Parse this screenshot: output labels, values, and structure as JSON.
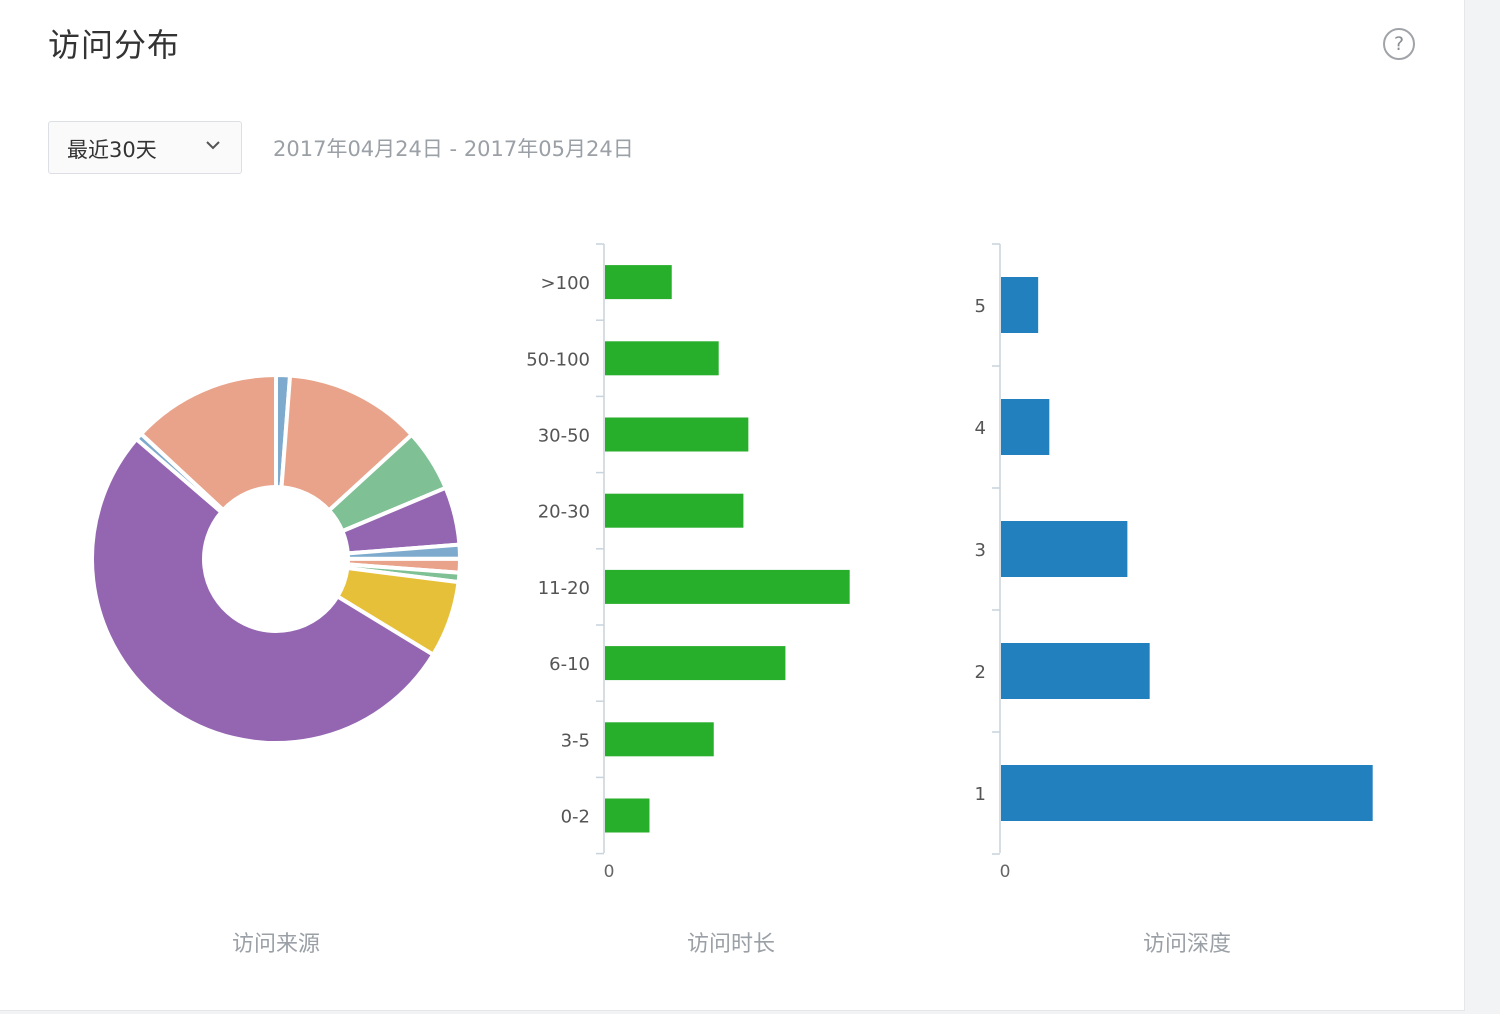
{
  "header": {
    "title": "访问分布",
    "help_icon": "?"
  },
  "filter": {
    "range_select": "最近30天",
    "date_range": "2017年04月24日 - 2017年05月24日"
  },
  "captions": {
    "source": "访问来源",
    "duration": "访问时长",
    "depth": "访问深度"
  },
  "chart_data": [
    {
      "type": "pie",
      "title": "访问来源",
      "donut": true,
      "slices": [
        {
          "value": 1.2,
          "color": "#7eabcd"
        },
        {
          "value": 11.8,
          "color": "#e8a38a"
        },
        {
          "value": 5.4,
          "color": "#7fc095"
        },
        {
          "value": 5.0,
          "color": "#9466b2"
        },
        {
          "value": 1.2,
          "color": "#7eabcd"
        },
        {
          "value": 1.2,
          "color": "#e8a38a"
        },
        {
          "value": 0.8,
          "color": "#7fc095"
        },
        {
          "value": 6.6,
          "color": "#e7c039"
        },
        {
          "value": 51.8,
          "color": "#9466b2"
        },
        {
          "value": 0.6,
          "color": "#7eabcd"
        },
        {
          "value": 12.9,
          "color": "#e8a38a"
        }
      ]
    },
    {
      "type": "bar",
      "orientation": "horizontal",
      "title": "访问时长",
      "color": "#27ae2a",
      "categories": [
        ">100",
        "50-100",
        "30-50",
        "20-30",
        "11-20",
        "6-10",
        "3-5",
        "0-2"
      ],
      "values": [
        27,
        46,
        58,
        56,
        99,
        73,
        44,
        18
      ],
      "xlim": [
        0,
        140
      ],
      "x_ticks": [
        "0"
      ]
    },
    {
      "type": "bar",
      "orientation": "horizontal",
      "title": "访问深度",
      "color": "#2380be",
      "categories": [
        "5",
        "4",
        "3",
        "2",
        "1"
      ],
      "values": [
        10,
        13,
        34,
        40,
        100
      ],
      "xlim": [
        0,
        106
      ],
      "x_ticks": [
        "0"
      ]
    }
  ]
}
